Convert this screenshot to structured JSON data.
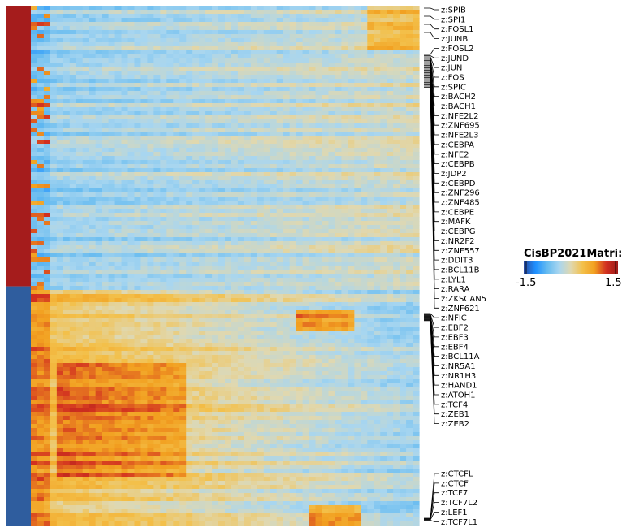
{
  "chart_data": {
    "type": "heatmap",
    "legend": {
      "title": "CisBP2021Matri:",
      "min_label": "-1.5",
      "max_label": "1.5",
      "range": [
        -1.5,
        1.5
      ],
      "colors": [
        "#2a4aa0",
        "#1e90ff",
        "#66bbf0",
        "#a8d6f0",
        "#e0d8b0",
        "#f3c04a",
        "#f2a020",
        "#d23020",
        "#9e1a1a"
      ]
    },
    "row_groups": [
      {
        "color": "#a51c1c",
        "fraction": 0.54
      },
      {
        "color": "#2f5d9e",
        "fraction": 0.46
      }
    ],
    "row_labels": [
      "z:SPIB",
      "z:SPI1",
      "z:FOSL1",
      "z:JUNB",
      "z:FOSL2",
      "z:JUND",
      "z:JUN",
      "z:FOS",
      "z:SPIC",
      "z:BACH2",
      "z:BACH1",
      "z:NFE2L2",
      "z:ZNF695",
      "z:NFE2L3",
      "z:CEBPA",
      "z:NFE2",
      "z:CEBPB",
      "z:JDP2",
      "z:CEBPD",
      "z:ZNF296",
      "z:ZNF485",
      "z:CEBPE",
      "z:MAFK",
      "z:CEBPG",
      "z:NR2F2",
      "z:ZNF557",
      "z:DDIT3",
      "z:BCL11B",
      "z:LYL1",
      "z:RARA",
      "z:ZKSCAN5",
      "z:ZNF621",
      "z:NFIC",
      "z:EBF2",
      "z:EBF3",
      "z:EBF4",
      "z:BCL11A",
      "z:NR5A1",
      "z:NR1H3",
      "z:HAND1",
      "z:ATOH1",
      "z:TCF4",
      "z:ZEB1",
      "z:ZEB2",
      "z:CTCFL",
      "z:CTCF",
      "z:TCF7",
      "z:TCF7L2",
      "z:LEF1",
      "z:TCF7L1"
    ]
  }
}
